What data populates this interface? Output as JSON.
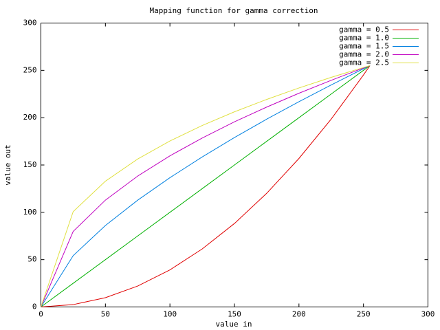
{
  "chart_data": {
    "type": "line",
    "title": "Mapping function for gamma correction",
    "x_label": "value in",
    "y_label": "value out",
    "x": [
      0,
      25,
      50,
      75,
      100,
      125,
      150,
      175,
      200,
      225,
      250,
      255
    ],
    "series": [
      {
        "name": "gamma = 0.5",
        "color": "#e00000",
        "values": [
          0,
          2.5,
          9.8,
          22.1,
          39.2,
          61.3,
          88.2,
          120.1,
          156.9,
          198.5,
          245.1,
          255
        ]
      },
      {
        "name": "gamma = 1.0",
        "color": "#00b000",
        "values": [
          0,
          25,
          50,
          75,
          100,
          125,
          150,
          175,
          200,
          225,
          250,
          255
        ]
      },
      {
        "name": "gamma = 1.5",
        "color": "#0080e0",
        "values": [
          0,
          54.2,
          86.1,
          112.8,
          136.6,
          158.5,
          179.0,
          198.4,
          216.9,
          234.6,
          251.7,
          255
        ]
      },
      {
        "name": "gamma = 2.0",
        "color": "#c000c0",
        "values": [
          0,
          79.8,
          112.9,
          138.3,
          159.7,
          178.5,
          195.6,
          211.2,
          225.8,
          239.5,
          252.5,
          255
        ]
      },
      {
        "name": "gamma = 2.5",
        "color": "#e0e040",
        "values": [
          0,
          100.7,
          132.9,
          156.3,
          175.4,
          191.7,
          206.2,
          219.3,
          231.4,
          242.6,
          253.0,
          255
        ]
      }
    ],
    "xlim": [
      0,
      300
    ],
    "xticks": [
      0,
      50,
      100,
      150,
      200,
      250,
      300
    ],
    "ylim": [
      0,
      300
    ],
    "yticks": [
      0,
      50,
      100,
      150,
      200,
      250,
      300
    ],
    "legend": "top-right"
  }
}
